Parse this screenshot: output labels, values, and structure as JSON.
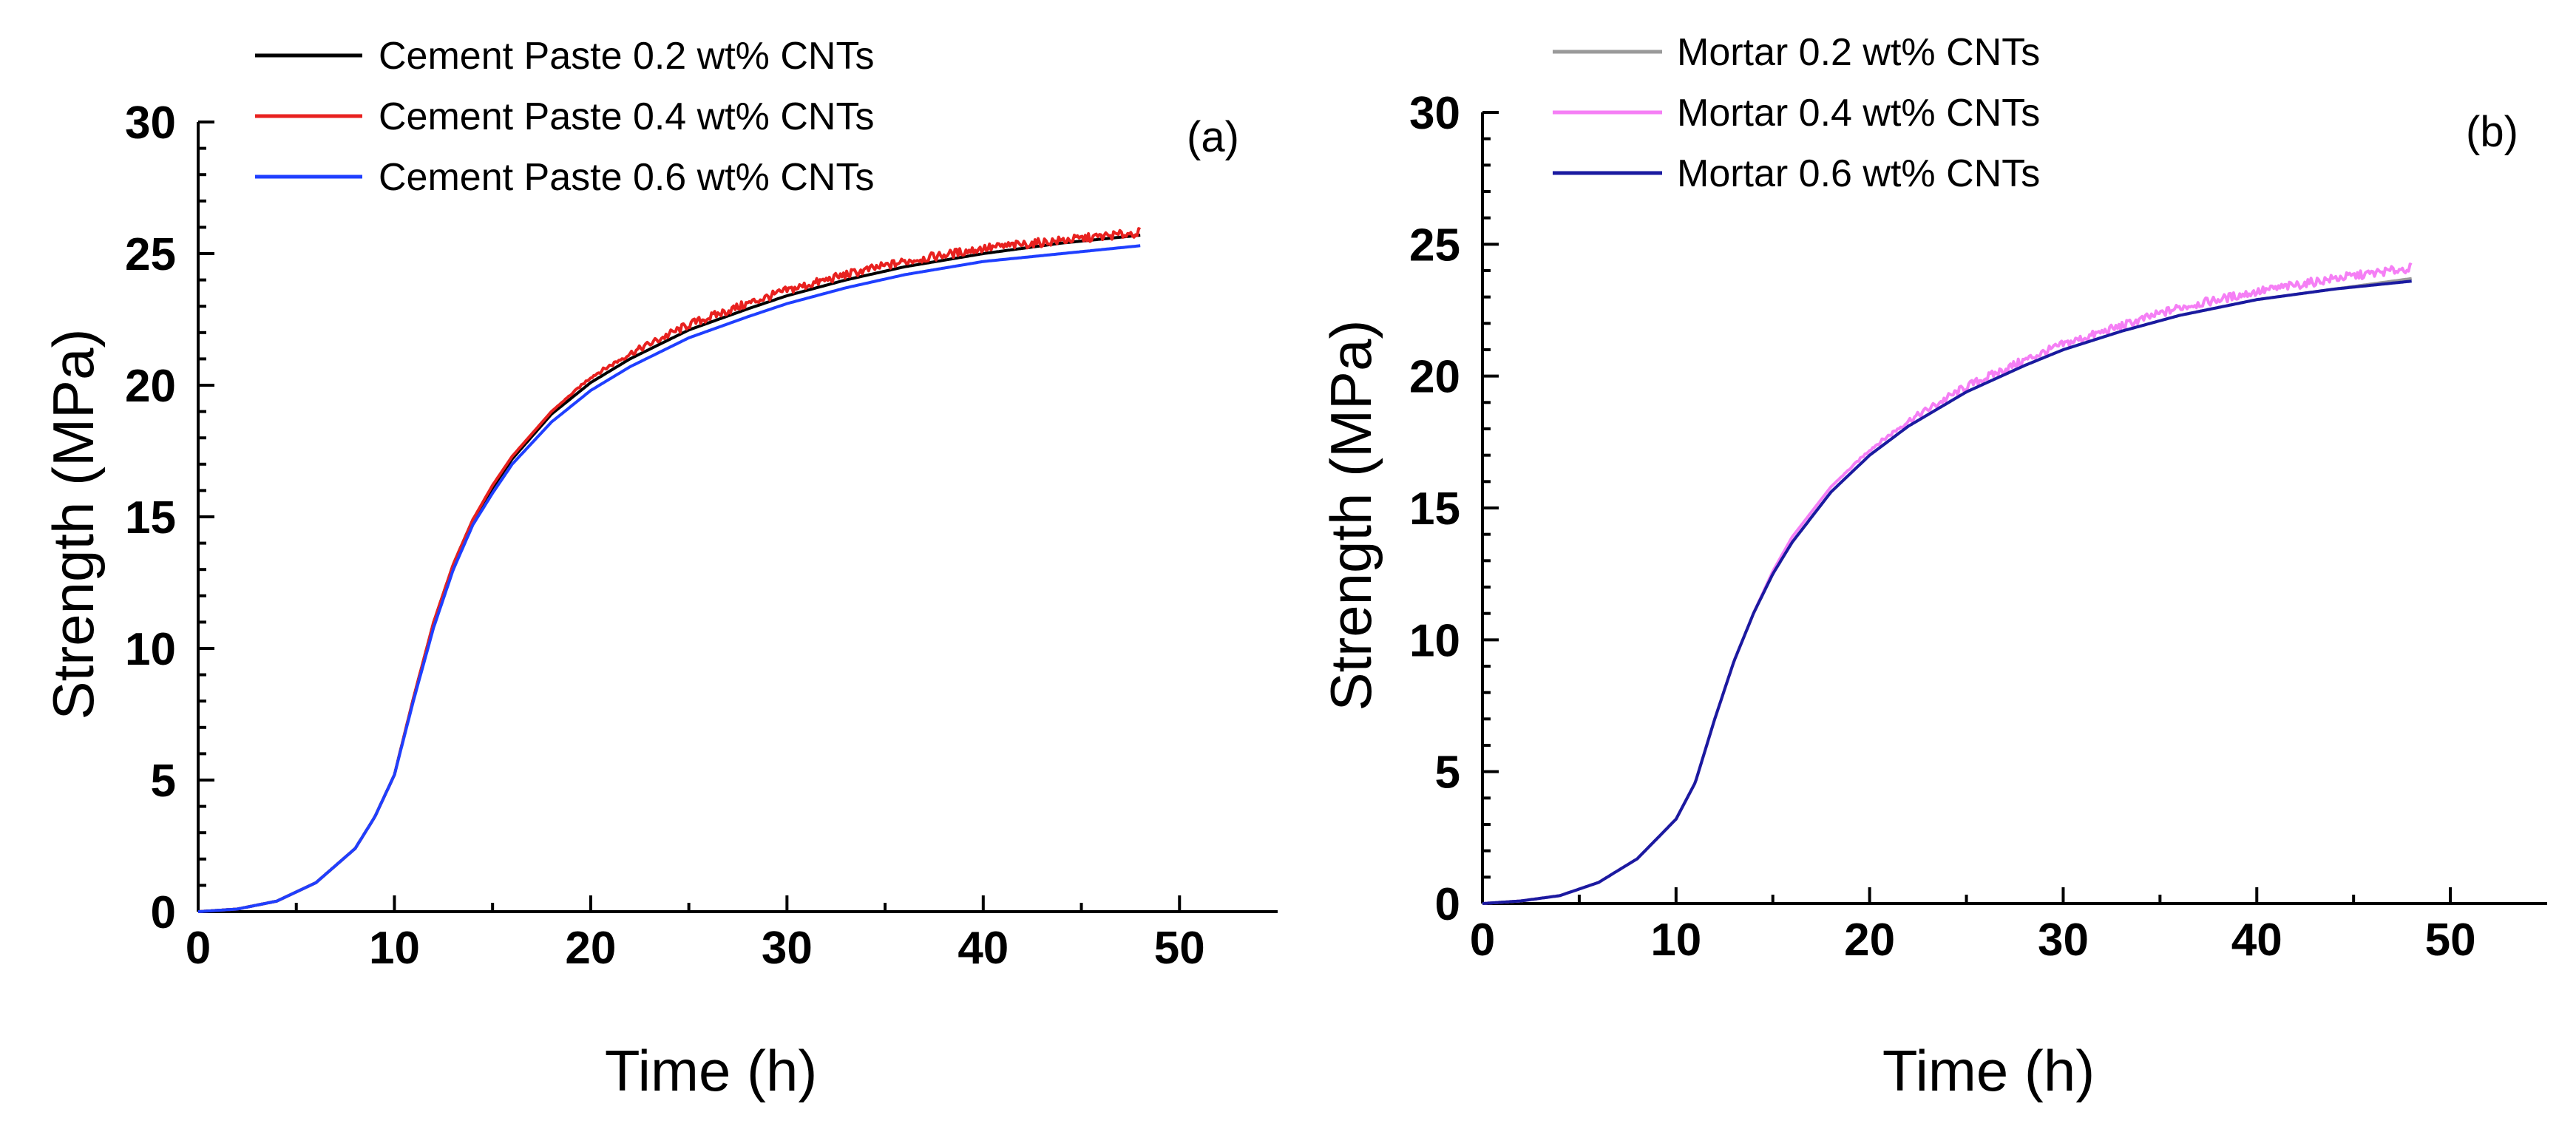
{
  "chart_data": [
    {
      "type": "line",
      "panel_label": "(a)",
      "xlabel": "Time (h)",
      "ylabel": "Strength (MPa)",
      "xlim": [
        0,
        55
      ],
      "ylim": [
        0,
        30
      ],
      "xticks": [
        0,
        10,
        20,
        30,
        40,
        50
      ],
      "yticks": [
        0,
        5,
        10,
        15,
        20,
        25,
        30
      ],
      "legend_position": "top-left",
      "x": [
        0,
        2,
        4,
        6,
        8,
        9,
        10,
        11,
        12,
        13,
        14,
        15,
        16,
        18,
        20,
        22,
        25,
        28,
        30,
        33,
        36,
        40,
        44,
        48
      ],
      "series": [
        {
          "name": "Cement Paste 0.2 wt% CNTs",
          "color": "#000000",
          "values": [
            0,
            0.1,
            0.4,
            1.1,
            2.4,
            3.6,
            5.2,
            8.2,
            11.0,
            13.2,
            14.9,
            16.1,
            17.2,
            18.9,
            20.1,
            21.0,
            22.1,
            22.9,
            23.4,
            24.0,
            24.5,
            25.0,
            25.4,
            25.7
          ]
        },
        {
          "name": "Cement Paste 0.4 wt% CNTs",
          "color": "#e8211f",
          "noisy": true,
          "values": [
            0,
            0.1,
            0.4,
            1.1,
            2.4,
            3.6,
            5.2,
            8.2,
            11.0,
            13.2,
            14.9,
            16.2,
            17.3,
            19.0,
            20.3,
            21.2,
            22.3,
            23.1,
            23.6,
            24.2,
            24.7,
            25.2,
            25.5,
            25.8
          ]
        },
        {
          "name": "Cement Paste 0.6 wt% CNTs",
          "color": "#1f3fff",
          "values": [
            0,
            0.1,
            0.4,
            1.1,
            2.4,
            3.6,
            5.2,
            8.1,
            10.8,
            13.0,
            14.7,
            15.9,
            17.0,
            18.6,
            19.8,
            20.7,
            21.8,
            22.6,
            23.1,
            23.7,
            24.2,
            24.7,
            25.0,
            25.3
          ]
        }
      ]
    },
    {
      "type": "line",
      "panel_label": "(b)",
      "xlabel": "Time (h)",
      "ylabel": "Strength (MPa)",
      "xlim": [
        0,
        55
      ],
      "ylim": [
        0,
        30
      ],
      "xticks": [
        0,
        10,
        20,
        30,
        40,
        50
      ],
      "yticks": [
        0,
        5,
        10,
        15,
        20,
        25,
        30
      ],
      "legend_position": "top-left",
      "x": [
        0,
        2,
        4,
        6,
        8,
        10,
        11,
        12,
        13,
        14,
        15,
        16,
        18,
        20,
        22,
        25,
        28,
        30,
        33,
        36,
        40,
        44,
        48
      ],
      "series": [
        {
          "name": "Mortar 0.2 wt% CNTs",
          "color": "#9a9a9a",
          "values": [
            0,
            0.1,
            0.3,
            0.8,
            1.7,
            3.2,
            4.6,
            7.0,
            9.2,
            11.0,
            12.5,
            13.7,
            15.6,
            17.0,
            18.1,
            19.4,
            20.4,
            21.0,
            21.7,
            22.3,
            22.9,
            23.3,
            23.7
          ]
        },
        {
          "name": "Mortar 0.4 wt% CNTs",
          "color": "#f57ff5",
          "noisy": true,
          "values": [
            0,
            0.1,
            0.3,
            0.8,
            1.7,
            3.2,
            4.6,
            7.0,
            9.2,
            11.0,
            12.6,
            13.9,
            15.8,
            17.2,
            18.3,
            19.6,
            20.6,
            21.2,
            21.9,
            22.6,
            23.2,
            23.7,
            24.1
          ]
        },
        {
          "name": "Mortar 0.6 wt% CNTs",
          "color": "#1a1aa0",
          "values": [
            0,
            0.1,
            0.3,
            0.8,
            1.7,
            3.2,
            4.6,
            7.0,
            9.2,
            11.0,
            12.5,
            13.7,
            15.6,
            17.0,
            18.1,
            19.4,
            20.4,
            21.0,
            21.7,
            22.3,
            22.9,
            23.3,
            23.6
          ]
        }
      ]
    }
  ]
}
